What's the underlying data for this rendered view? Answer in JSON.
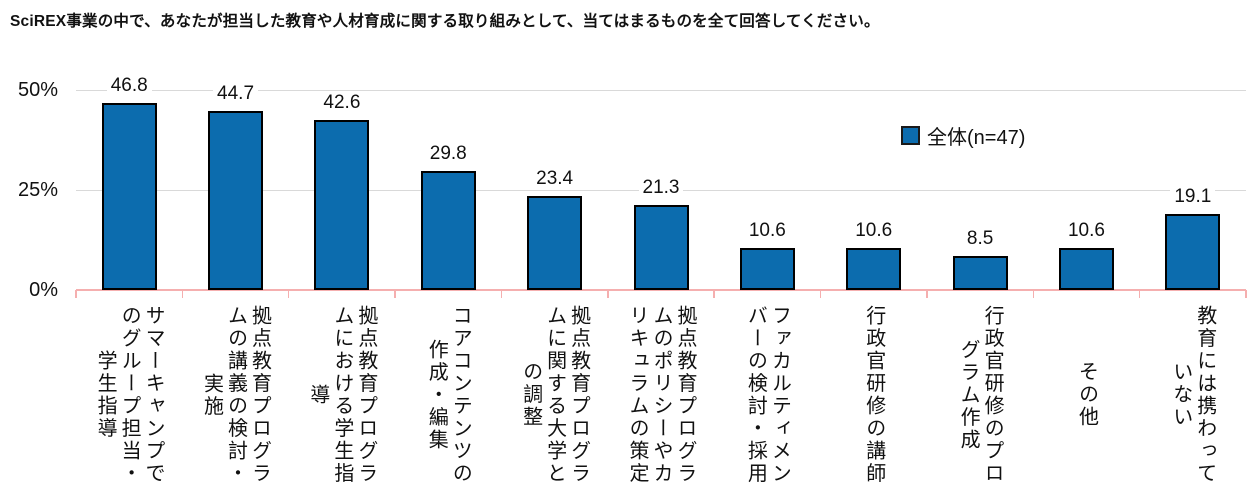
{
  "title": "SciREX事業の中で、あなたが担当した教育や人材育成に関する取り組みとして、当てはまるものを全て回答してください。",
  "legend": {
    "label": "全体(n=47)"
  },
  "chart_data": {
    "type": "bar",
    "title": "SciREX事業の中で、あなたが担当した教育や人材育成に関する取り組みとして、当てはまるものを全て回答してください。",
    "series": [
      {
        "name": "全体(n=47)",
        "values": [
          46.8,
          44.7,
          42.6,
          29.8,
          23.4,
          21.3,
          10.6,
          10.6,
          8.5,
          10.6,
          19.1
        ]
      }
    ],
    "categories": [
      "サマーキャンプでのグループ担当・学生指導",
      "拠点教育プログラムの講義の検討・実施",
      "拠点教育プログラムにおける学生指導",
      "コアコンテンツの作成・編集",
      "拠点教育プログラムに関する大学との調整",
      "拠点教育プログラムのポリシーやカリキュラムの策定",
      "ファカルティメンバーの検討・採用",
      "行政官研修の講師",
      "行政官研修のプログラム作成",
      "その他",
      "教育には携わっていない"
    ],
    "xlabel": "",
    "ylabel": "%",
    "ylim": [
      0,
      50
    ],
    "yticks": [
      0,
      25,
      50
    ],
    "ytick_labels": [
      "0%",
      "25%",
      "50%"
    ],
    "grid": true,
    "legend_position": "right-upper-middle",
    "value_labels_shown": true,
    "colors": {
      "bar_fill": "#0C6CAE",
      "bar_border": "#000000",
      "axis_line": "#F5AFAF",
      "gridline": "#D9D9D9",
      "text": "#111111"
    }
  }
}
